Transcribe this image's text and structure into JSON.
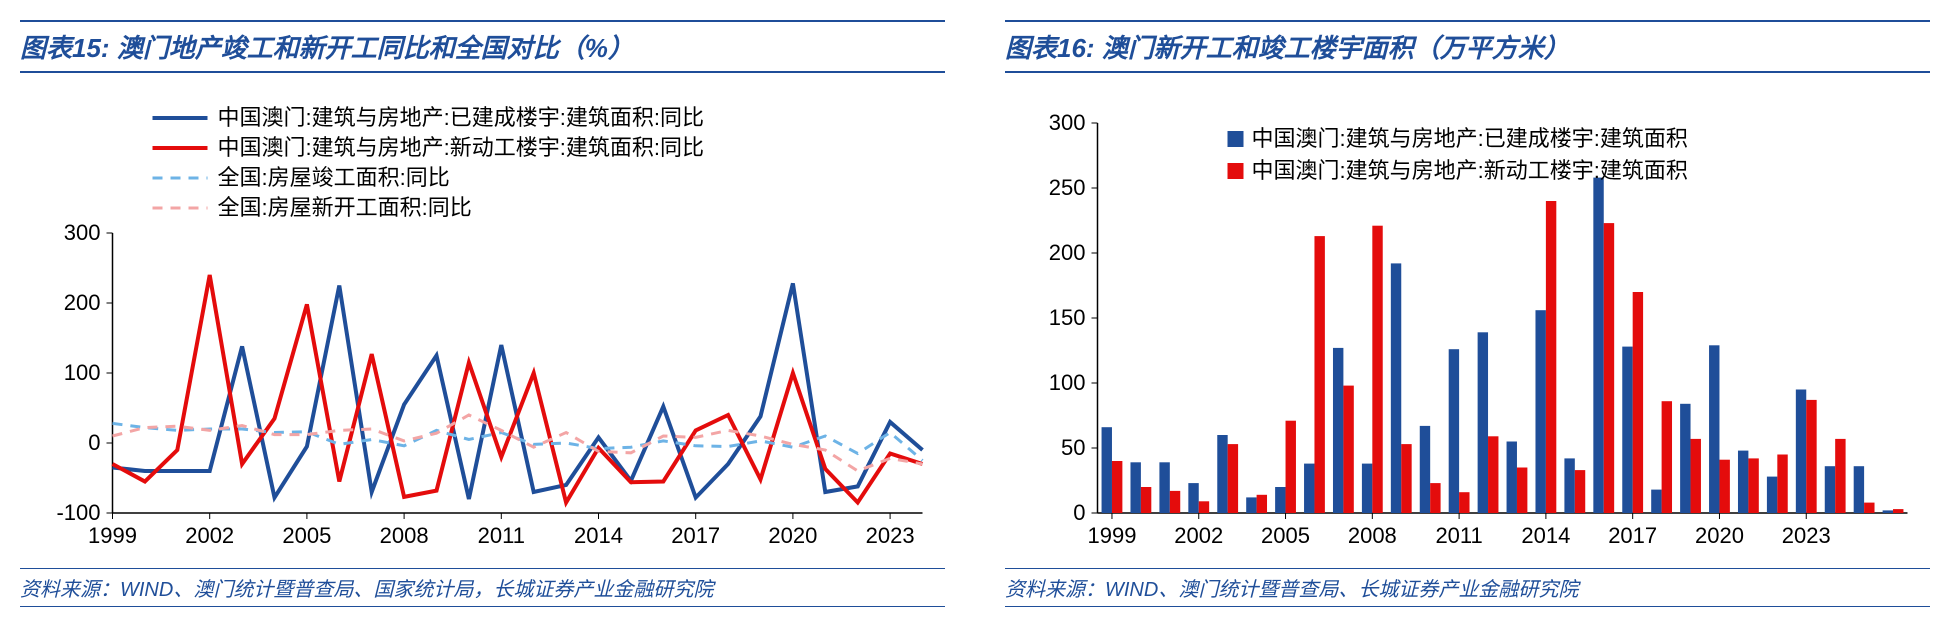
{
  "left": {
    "title": "图表15:  澳门地产竣工和新开工同比和全国对比（%）",
    "source": "资料来源：WIND、澳门统计暨普查局、国家统计局，长城证券产业金融研究院",
    "type": "line",
    "xticks": [
      "1999",
      "2002",
      "2005",
      "2008",
      "2011",
      "2014",
      "2017",
      "2020",
      "2023"
    ],
    "ylim": [
      -100,
      300
    ],
    "yticks": [
      -100,
      0,
      100,
      200,
      300
    ],
    "background_color": "#ffffff",
    "axis_color": "#000000",
    "series": [
      {
        "name": "中国澳门:建筑与房地产:已建成楼宇:建筑面积:同比",
        "color": "#1f4e99",
        "dash": "solid",
        "width": 4,
        "values": [
          -35,
          -40,
          -40,
          -40,
          138,
          -78,
          -5,
          225,
          -70,
          55,
          125,
          -80,
          140,
          -70,
          -60,
          8,
          -54,
          52,
          -78,
          -30,
          38,
          228,
          -70,
          -62,
          30,
          -10
        ]
      },
      {
        "name": "中国澳门:建筑与房地产:新动工楼宇:建筑面积:同比",
        "color": "#e40c0c",
        "dash": "solid",
        "width": 4,
        "values": [
          -30,
          -55,
          -10,
          240,
          -30,
          35,
          198,
          -55,
          127,
          -77,
          -68,
          115,
          -20,
          100,
          -85,
          -7,
          -56,
          -55,
          18,
          40,
          -52,
          100,
          -37,
          -85,
          -15,
          -30
        ]
      },
      {
        "name": "全国:房屋竣工面积:同比",
        "color": "#6db3e6",
        "dash": "dashed",
        "width": 3,
        "values": [
          28,
          22,
          18,
          20,
          20,
          15,
          16,
          -2,
          5,
          -4,
          18,
          5,
          15,
          -2,
          0,
          -8,
          -6,
          3,
          -4,
          -5,
          3,
          -6,
          10,
          -15,
          15,
          -25
        ]
      },
      {
        "name": "全国:房屋新开工面积:同比",
        "color": "#f3a5a5",
        "dash": "dashed",
        "width": 3,
        "values": [
          10,
          22,
          24,
          18,
          25,
          12,
          12,
          18,
          20,
          3,
          14,
          40,
          18,
          -6,
          15,
          -12,
          -14,
          10,
          8,
          18,
          10,
          -2,
          -10,
          -40,
          -22,
          -30
        ]
      }
    ]
  },
  "right": {
    "title": "图表16:  澳门新开工和竣工楼宇面积（万平方米）",
    "source": "资料来源：WIND、澳门统计暨普查局、长城证券产业金融研究院",
    "type": "bar",
    "xticks": [
      "1999",
      "2002",
      "2005",
      "2008",
      "2011",
      "2014",
      "2017",
      "2020",
      "2023"
    ],
    "ylim": [
      0,
      300
    ],
    "yticks": [
      0,
      50,
      100,
      150,
      200,
      250,
      300
    ],
    "background_color": "#ffffff",
    "axis_color": "#000000",
    "bar_width": 0.36,
    "series": [
      {
        "name": "中国澳门:建筑与房地产:已建成楼宇:建筑面积",
        "color": "#1f4e99",
        "values": [
          66,
          39,
          39,
          23,
          60,
          12,
          20,
          38,
          127,
          38,
          192,
          67,
          126,
          139,
          55,
          156,
          42,
          258,
          128,
          18,
          84,
          129,
          48,
          28,
          95,
          36,
          36,
          2
        ]
      },
      {
        "name": "中国澳门:建筑与房地产:新动工楼宇:建筑面积",
        "color": "#e40c0c",
        "values": [
          40,
          20,
          17,
          9,
          53,
          14,
          71,
          213,
          98,
          221,
          53,
          23,
          16,
          59,
          35,
          240,
          33,
          223,
          170,
          86,
          57,
          41,
          42,
          45,
          87,
          57,
          8,
          3
        ]
      }
    ]
  },
  "title_fontsize": 26,
  "source_fontsize": 20,
  "axis_fontsize": 22,
  "legend_fontsize": 22
}
